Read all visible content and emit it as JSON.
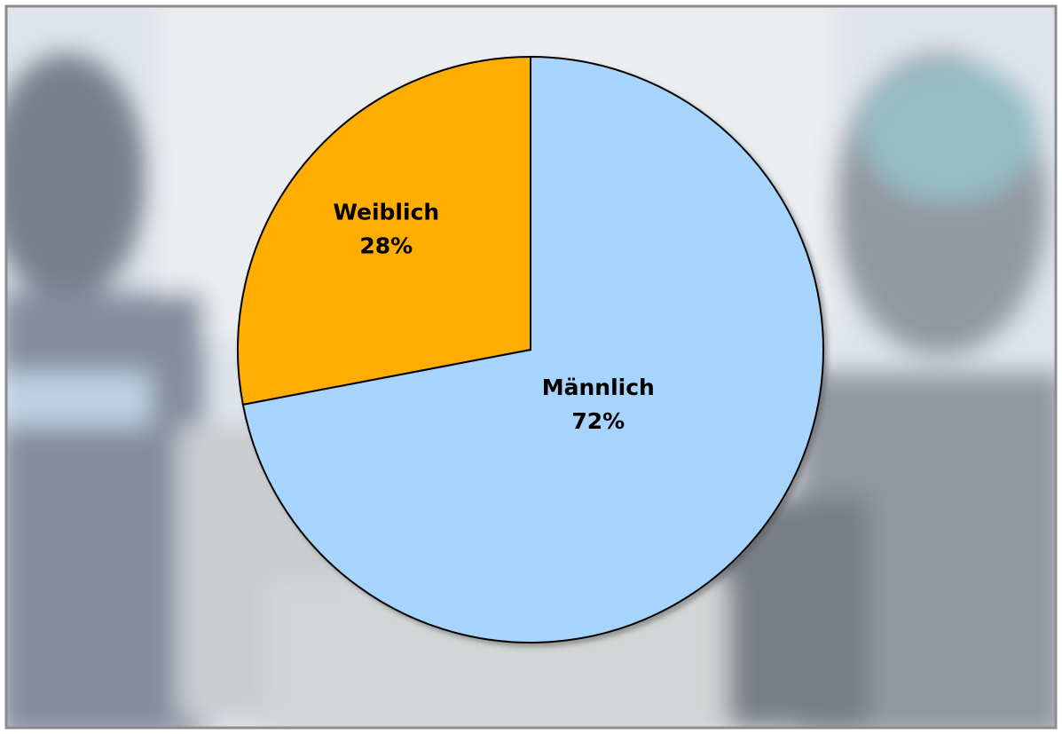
{
  "chart_data": {
    "type": "pie",
    "categories": [
      "Männlich",
      "Weiblich"
    ],
    "values": [
      72,
      28
    ],
    "value_labels": [
      "72%",
      "28%"
    ],
    "colors": [
      "#a6d4fc",
      "#ffad00"
    ]
  }
}
